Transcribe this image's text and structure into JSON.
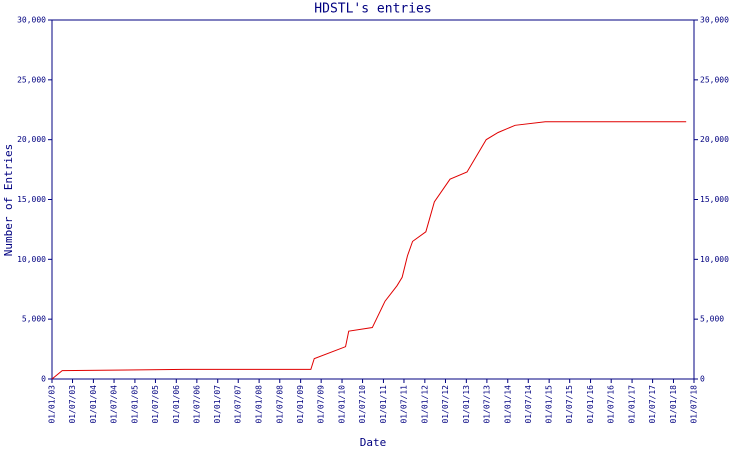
{
  "chart_data": {
    "type": "line",
    "title": "HDSTL's entries",
    "x_label": "Date",
    "y_label": "Number of Entries",
    "x": [
      "2003-01-01",
      "2003-04-01",
      "2006-03-15",
      "2009-04-01",
      "2009-05-01",
      "2010-02-01",
      "2010-03-01",
      "2010-09-25",
      "2011-01-15",
      "2011-05-01",
      "2011-06-15",
      "2011-08-01",
      "2011-09-15",
      "2012-01-10",
      "2012-03-25",
      "2012-08-10",
      "2013-01-07",
      "2013-06-25",
      "2013-10-08",
      "2014-03-07",
      "2014-11-28",
      "2018-04-23"
    ],
    "series": [
      {
        "name": "HDSTL",
        "color": "#e00000",
        "values": [
          0,
          700,
          800,
          800,
          1700,
          2700,
          4000,
          4300,
          6500,
          7800,
          8500,
          10300,
          11500,
          12300,
          14800,
          16700,
          17300,
          20000,
          20600,
          21200,
          21500,
          21500
        ]
      }
    ],
    "xlim": [
      "2003-01-01",
      "2018-07-01"
    ],
    "xticks": [
      {
        "value": "2003-01-01",
        "label": "01/01/03"
      },
      {
        "value": "2003-07-01",
        "label": "01/07/03"
      },
      {
        "value": "2004-01-01",
        "label": "01/01/04"
      },
      {
        "value": "2004-07-01",
        "label": "01/07/04"
      },
      {
        "value": "2005-01-01",
        "label": "01/01/05"
      },
      {
        "value": "2005-07-01",
        "label": "01/07/05"
      },
      {
        "value": "2006-01-01",
        "label": "01/01/06"
      },
      {
        "value": "2006-07-01",
        "label": "01/07/06"
      },
      {
        "value": "2007-01-01",
        "label": "01/01/07"
      },
      {
        "value": "2007-07-01",
        "label": "01/07/07"
      },
      {
        "value": "2008-01-01",
        "label": "01/01/08"
      },
      {
        "value": "2008-07-01",
        "label": "01/07/08"
      },
      {
        "value": "2009-01-01",
        "label": "01/01/09"
      },
      {
        "value": "2009-07-01",
        "label": "01/07/09"
      },
      {
        "value": "2010-01-01",
        "label": "01/01/10"
      },
      {
        "value": "2010-07-01",
        "label": "01/07/10"
      },
      {
        "value": "2011-01-01",
        "label": "01/01/11"
      },
      {
        "value": "2011-07-01",
        "label": "01/07/11"
      },
      {
        "value": "2012-01-01",
        "label": "01/01/12"
      },
      {
        "value": "2012-07-01",
        "label": "01/07/12"
      },
      {
        "value": "2013-01-01",
        "label": "01/01/13"
      },
      {
        "value": "2013-07-01",
        "label": "01/07/13"
      },
      {
        "value": "2014-01-01",
        "label": "01/01/14"
      },
      {
        "value": "2014-07-01",
        "label": "01/07/14"
      },
      {
        "value": "2015-01-01",
        "label": "01/01/15"
      },
      {
        "value": "2015-07-01",
        "label": "01/07/15"
      },
      {
        "value": "2016-01-01",
        "label": "01/01/16"
      },
      {
        "value": "2016-07-01",
        "label": "01/07/16"
      },
      {
        "value": "2017-01-01",
        "label": "01/01/17"
      },
      {
        "value": "2017-07-01",
        "label": "01/07/17"
      },
      {
        "value": "2018-01-01",
        "label": "01/01/18"
      },
      {
        "value": "2018-07-01",
        "label": "01/07/18"
      }
    ],
    "ylim": [
      0,
      30000
    ],
    "yticks": [
      0,
      {
        "value": 5000,
        "label": "5,000"
      },
      {
        "value": 10000,
        "label": "10,000"
      },
      {
        "value": 15000,
        "label": "15,000"
      },
      {
        "value": 20000,
        "label": "20,000"
      },
      {
        "value": 25000,
        "label": "25,000"
      },
      {
        "value": 30000,
        "label": "30,000"
      }
    ],
    "right_axis": true
  }
}
